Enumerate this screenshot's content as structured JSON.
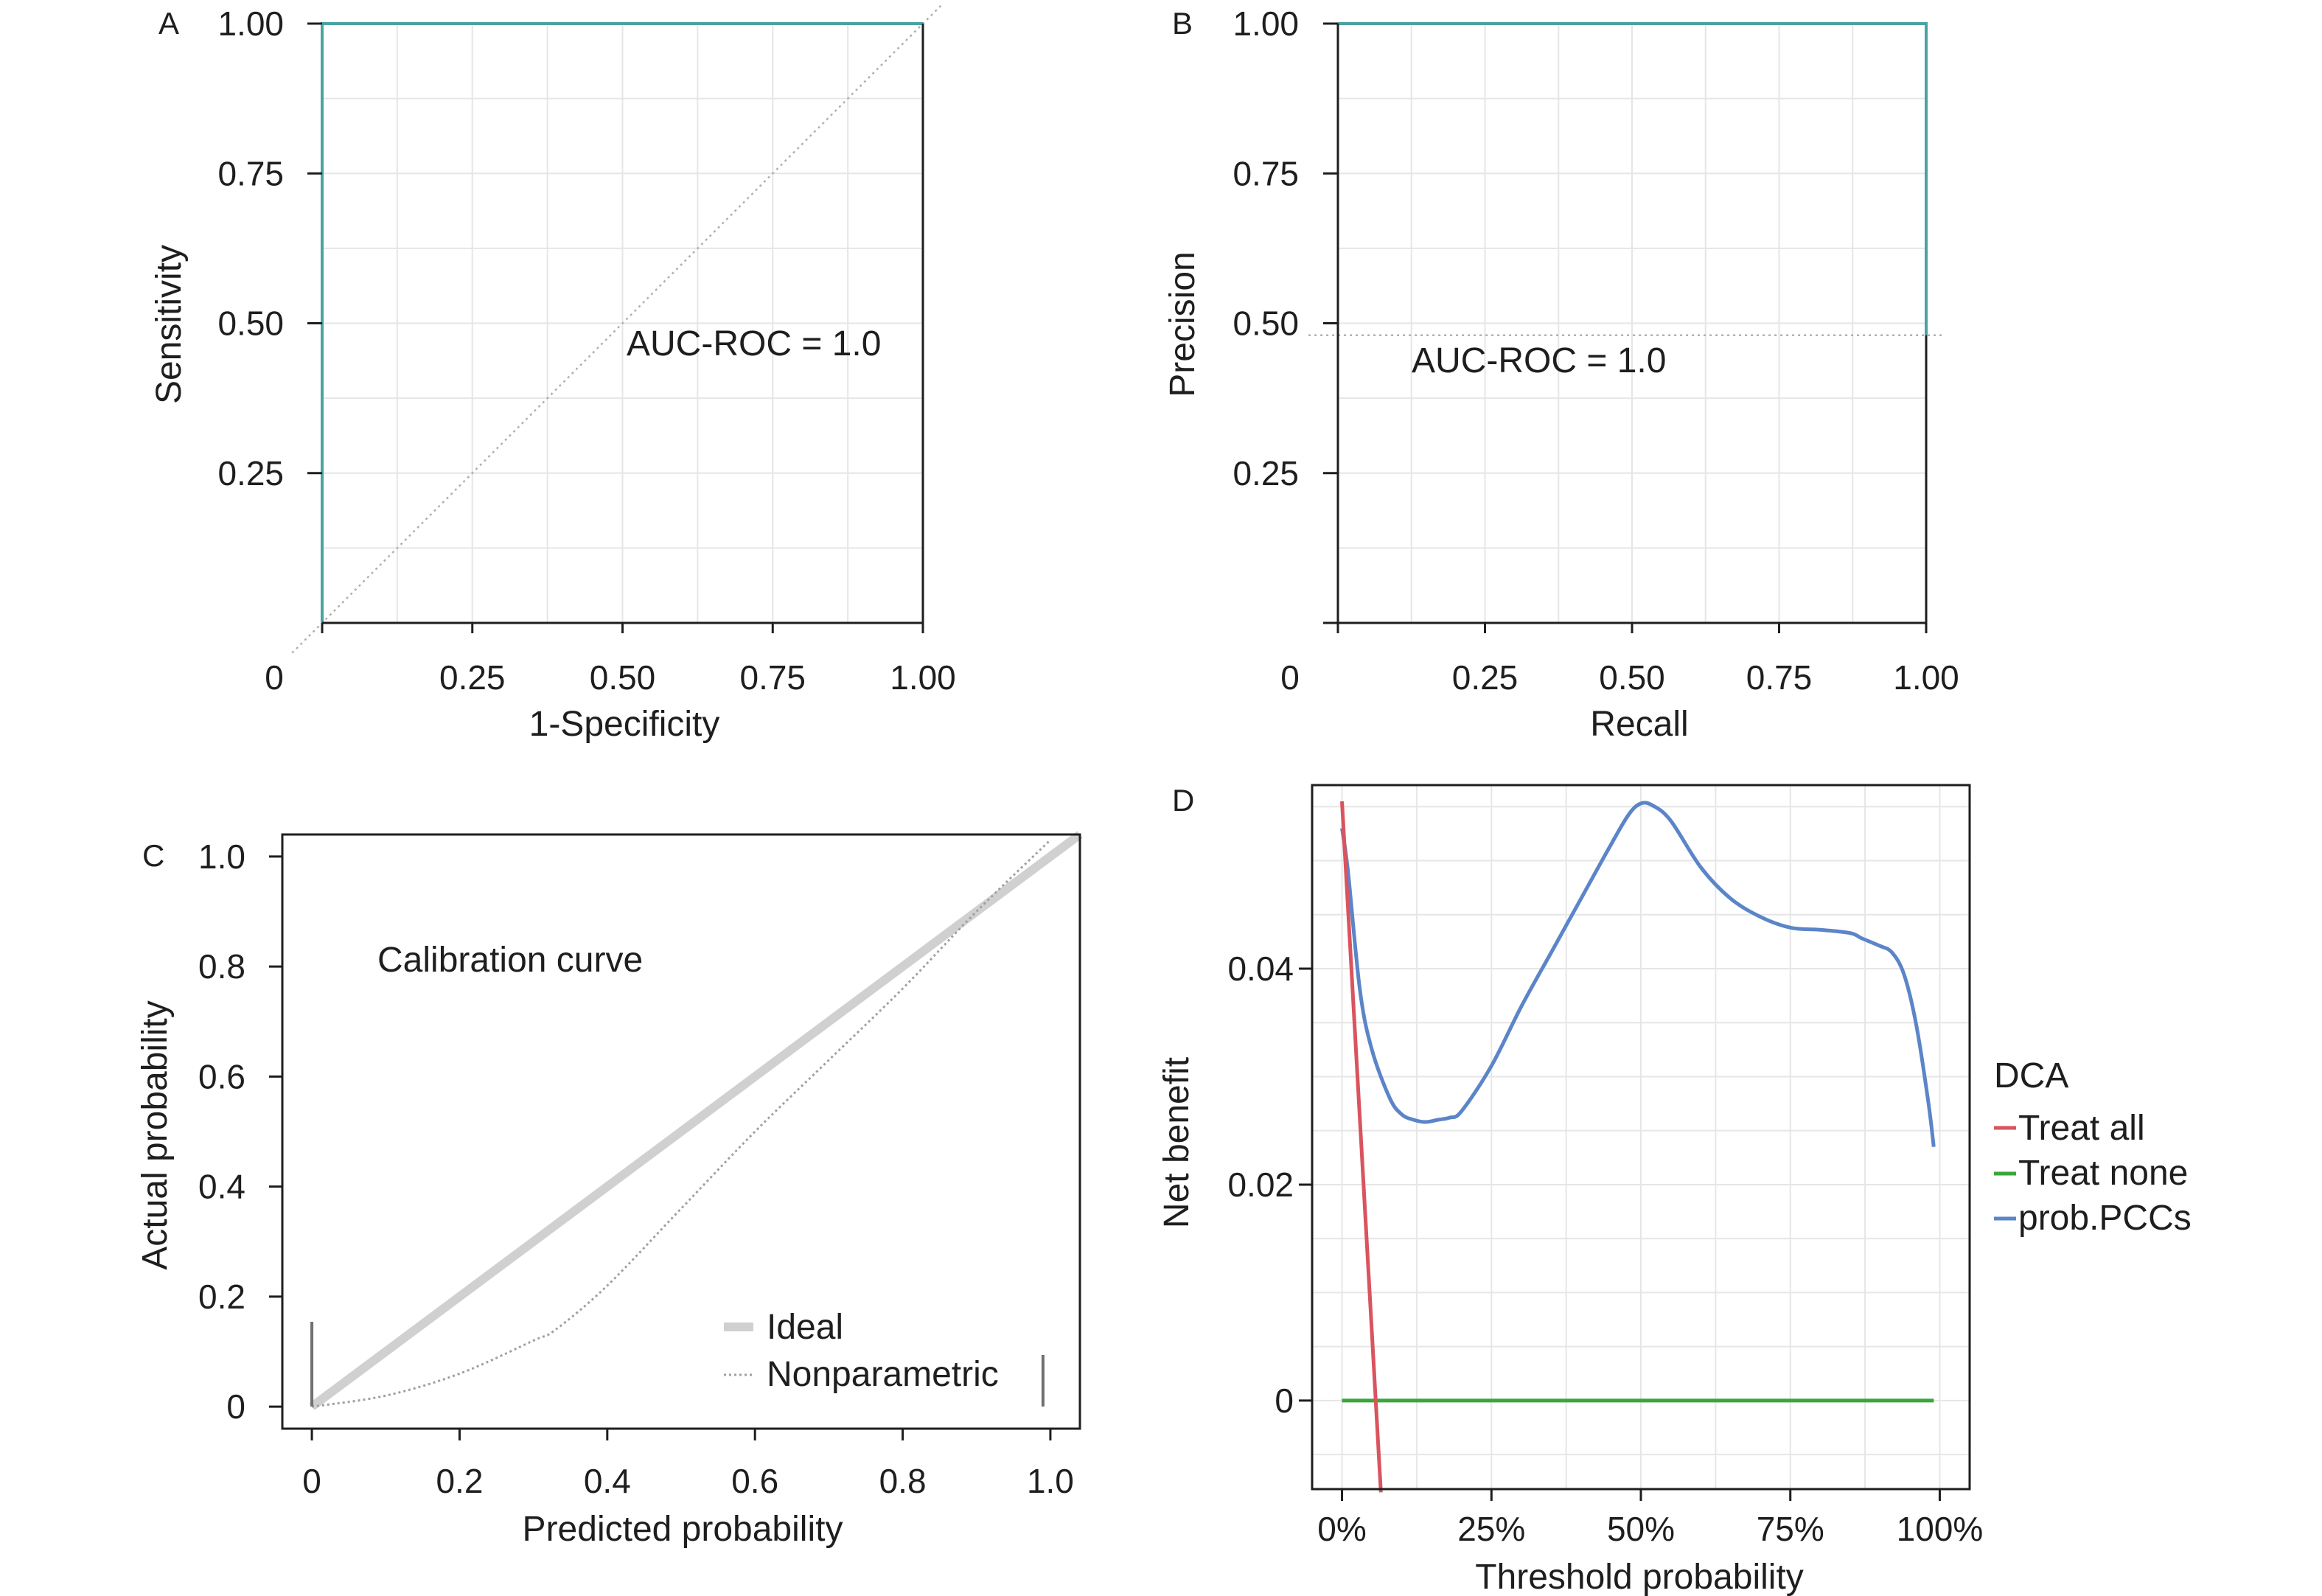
{
  "chart_data": [
    {
      "panel": "A",
      "type": "line",
      "xlabel": "1-Specificity",
      "ylabel": "Sensitivity",
      "xticks": [
        "0",
        "0.25",
        "0.50",
        "0.75",
        "1.00"
      ],
      "yticks": [
        "0.25",
        "0.50",
        "0.75",
        "1.00"
      ],
      "xlim": [
        0,
        1
      ],
      "ylim": [
        0,
        1
      ],
      "annotation": "AUC-ROC = 1.0",
      "series": [
        {
          "x": [
            0,
            0,
            1
          ],
          "y": [
            0,
            1,
            1
          ],
          "color": "#4aa3a3",
          "style": "solid"
        },
        {
          "x": [
            -0.05,
            1.03
          ],
          "y": [
            -0.05,
            1.03
          ],
          "color": "#b0b0b0",
          "style": "dotted"
        }
      ]
    },
    {
      "panel": "B",
      "type": "line",
      "xlabel": "Recall",
      "ylabel": "Precision",
      "xticks": [
        "0",
        "0.25",
        "0.50",
        "0.75",
        "1.00"
      ],
      "yticks": [
        "0.25",
        "0.50",
        "0.75",
        "1.00"
      ],
      "xlim": [
        0,
        1
      ],
      "ylim": [
        0,
        1
      ],
      "annotation": "AUC-ROC = 1.0",
      "series": [
        {
          "x": [
            0,
            1,
            1
          ],
          "y": [
            1,
            1,
            0.48
          ],
          "color": "#4aa3a3",
          "style": "solid"
        },
        {
          "x": [
            -0.05,
            1.03
          ],
          "y": [
            0.48,
            0.48
          ],
          "color": "#b0b0b0",
          "style": "dotted"
        }
      ]
    },
    {
      "panel": "C",
      "type": "line",
      "xlabel": "Predicted probability",
      "ylabel": "Actual probability",
      "xticks": [
        "0",
        "0.2",
        "0.4",
        "0.6",
        "0.8",
        "1.0"
      ],
      "yticks": [
        "0",
        "0.2",
        "0.4",
        "0.6",
        "0.8",
        "1.0"
      ],
      "xlim": [
        -0.04,
        1.04
      ],
      "ylim": [
        -0.04,
        1.04
      ],
      "annotation": "Calibration curve",
      "series": [
        {
          "name": "Ideal",
          "x": [
            0,
            1.04
          ],
          "y": [
            0,
            1.04
          ],
          "color": "#d0d0d0",
          "style": "thick"
        },
        {
          "name": "Nonparametric",
          "x": [
            0,
            0.1,
            0.2,
            0.3,
            0.33,
            0.4,
            0.5,
            0.6,
            0.7,
            0.8,
            0.9,
            1.0
          ],
          "y": [
            0,
            0.02,
            0.06,
            0.12,
            0.14,
            0.22,
            0.36,
            0.5,
            0.63,
            0.76,
            0.9,
            1.03
          ],
          "color": "#a0a0a0",
          "style": "dotted"
        }
      ],
      "rugs": [
        0.0,
        0.99
      ]
    },
    {
      "panel": "D",
      "type": "line",
      "xlabel": "Threshold probability",
      "ylabel": "Net benefit",
      "legend_title": "DCA",
      "xticks": [
        "0%",
        "25%",
        "50%",
        "75%",
        "100%"
      ],
      "yticks": [
        "0",
        "0.02",
        "0.04"
      ],
      "xlim": [
        -0.05,
        1.05
      ],
      "ylim": [
        -0.0082,
        0.057
      ],
      "series": [
        {
          "name": "Treat all",
          "x": [
            0,
            0.065
          ],
          "y": [
            0.0555,
            -0.0085
          ],
          "color": "#d9545e"
        },
        {
          "name": "Treat none",
          "x": [
            0,
            0.99
          ],
          "y": [
            0,
            0
          ],
          "color": "#3aa63a"
        },
        {
          "name": "prob.PCCs",
          "x": [
            0,
            0.01,
            0.03,
            0.05,
            0.08,
            0.1,
            0.12,
            0.14,
            0.16,
            0.18,
            0.2,
            0.25,
            0.3,
            0.35,
            0.4,
            0.45,
            0.48,
            0.5,
            0.52,
            0.55,
            0.6,
            0.65,
            0.7,
            0.75,
            0.8,
            0.85,
            0.87,
            0.9,
            0.92,
            0.94,
            0.96,
            0.98,
            0.99
          ],
          "y": [
            0.053,
            0.049,
            0.038,
            0.0325,
            0.028,
            0.0265,
            0.026,
            0.0258,
            0.026,
            0.0262,
            0.0268,
            0.031,
            0.0365,
            0.0415,
            0.0465,
            0.0515,
            0.0543,
            0.0553,
            0.0551,
            0.0537,
            0.0494,
            0.0465,
            0.0448,
            0.0438,
            0.0436,
            0.0433,
            0.0428,
            0.0421,
            0.0415,
            0.0395,
            0.035,
            0.028,
            0.0235
          ],
          "color": "#5b85c8"
        }
      ]
    }
  ]
}
